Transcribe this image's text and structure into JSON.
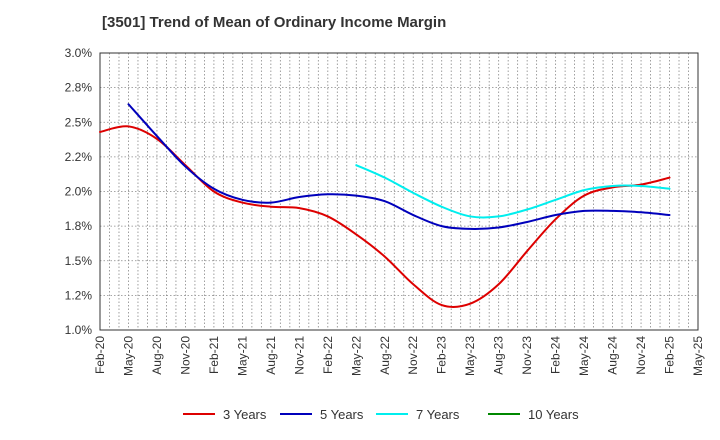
{
  "chart_data": {
    "type": "line",
    "title": "[3501]  Trend of Mean of Ordinary Income Margin",
    "xlabel": "",
    "ylabel": "",
    "ylim": [
      1.0,
      3.0
    ],
    "yticks": [
      "1.0%",
      "1.2%",
      "1.5%",
      "1.8%",
      "2.0%",
      "2.2%",
      "2.5%",
      "2.8%",
      "3.0%"
    ],
    "xticks": [
      "Feb-20",
      "May-20",
      "Aug-20",
      "Nov-20",
      "Feb-21",
      "May-21",
      "Aug-21",
      "Nov-21",
      "Feb-22",
      "May-22",
      "Aug-22",
      "Nov-22",
      "Feb-23",
      "May-23",
      "Aug-23",
      "Nov-23",
      "Feb-24",
      "May-24",
      "Aug-24",
      "Nov-24",
      "Feb-25",
      "May-25"
    ],
    "grid": true,
    "legend_position": "bottom",
    "series": [
      {
        "name": "3 Years",
        "color": "#dd0000",
        "values": [
          2.43,
          2.47,
          2.38,
          2.19,
          2.0,
          1.92,
          1.89,
          1.88,
          1.82,
          1.69,
          1.53,
          1.33,
          1.18,
          1.19,
          1.33,
          1.57,
          1.8,
          1.97,
          2.03,
          2.05,
          2.1,
          null
        ]
      },
      {
        "name": "5 Years",
        "color": "#0000bb",
        "values": [
          null,
          2.63,
          2.4,
          2.18,
          2.02,
          1.94,
          1.92,
          1.96,
          1.98,
          1.97,
          1.93,
          1.83,
          1.75,
          1.73,
          1.74,
          1.78,
          1.83,
          1.86,
          1.86,
          1.85,
          1.83,
          null
        ]
      },
      {
        "name": "7 Years",
        "color": "#00eeee",
        "values": [
          null,
          null,
          null,
          null,
          null,
          null,
          null,
          null,
          null,
          2.19,
          2.1,
          1.99,
          1.89,
          1.82,
          1.82,
          1.87,
          1.94,
          2.01,
          2.04,
          2.04,
          2.02,
          null
        ]
      },
      {
        "name": "10 Years",
        "color": "#008800",
        "values": [
          null,
          null,
          null,
          null,
          null,
          null,
          null,
          null,
          null,
          null,
          null,
          null,
          null,
          null,
          null,
          null,
          null,
          null,
          null,
          null,
          null,
          null
        ]
      }
    ]
  }
}
